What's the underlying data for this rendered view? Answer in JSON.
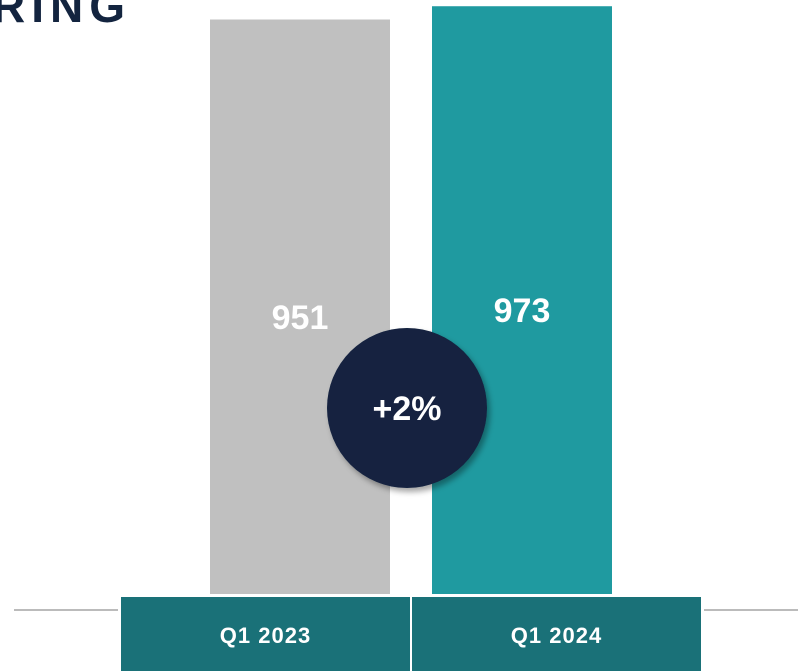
{
  "chart_data": {
    "type": "bar",
    "title": "RING",
    "categories": [
      "Q1 2023",
      "Q1 2024"
    ],
    "values": [
      951,
      973
    ],
    "colors": [
      "#c0c0c0",
      "#1f9aa0"
    ],
    "category_color": "#1a7178",
    "annotation": "+2%",
    "annotation_color": "#13243f",
    "ylim": [
      0,
      980
    ]
  }
}
